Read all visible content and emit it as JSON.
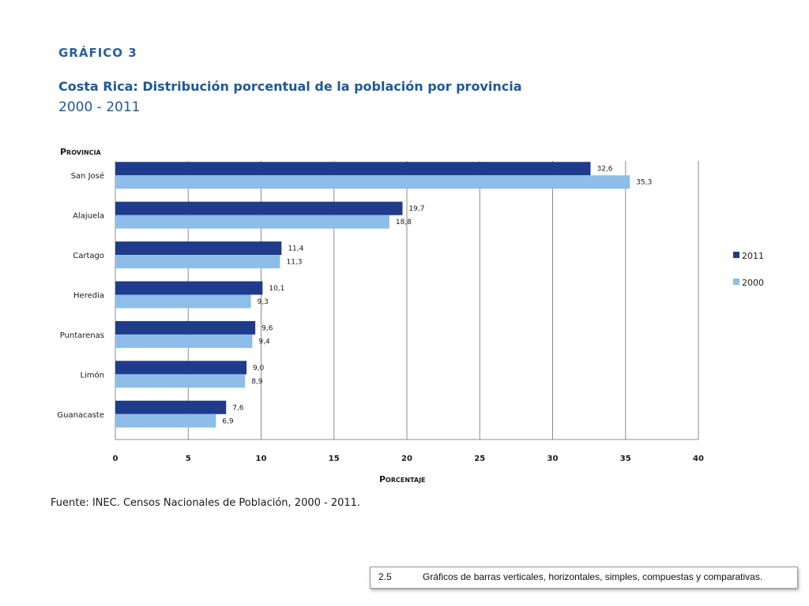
{
  "header": {
    "kicker": "GRÁFICO 3",
    "title": "Costa Rica: Distribución porcentual de la población por provincia",
    "subtitle": "2000 - 2011"
  },
  "chart_data": {
    "type": "bar",
    "orientation": "horizontal",
    "categories": [
      "San José",
      "Alajuela",
      "Cartago",
      "Heredia",
      "Puntarenas",
      "Limón",
      "Guanacaste"
    ],
    "series": [
      {
        "name": "2011",
        "color": "#1f3b8c",
        "values": [
          32.6,
          19.7,
          11.4,
          10.1,
          9.6,
          9.0,
          7.6
        ],
        "labels": [
          "32,6",
          "19,7",
          "11,4",
          "10,1",
          "9,6",
          "9,0",
          "7,6"
        ]
      },
      {
        "name": "2000",
        "color": "#8dbde8",
        "values": [
          35.3,
          18.8,
          11.3,
          9.3,
          9.4,
          8.9,
          6.9
        ],
        "labels": [
          "35,3",
          "18,8",
          "11,3",
          "9,3",
          "9,4",
          "8,9",
          "6,9"
        ]
      }
    ],
    "xlim": [
      0,
      40
    ],
    "xticks": [
      0,
      5,
      10,
      15,
      20,
      25,
      30,
      35,
      40
    ],
    "xlabel": "Porcentaje",
    "ylabel": "Provincia",
    "grid": true,
    "legend": "right"
  },
  "source": "Fuente:  INEC. Censos Nacionales de Población, 2000 - 2011.",
  "footer": {
    "number": "2.5",
    "text": "Gráficos de barras verticales, horizontales, simples, compuestas y comparativas."
  }
}
